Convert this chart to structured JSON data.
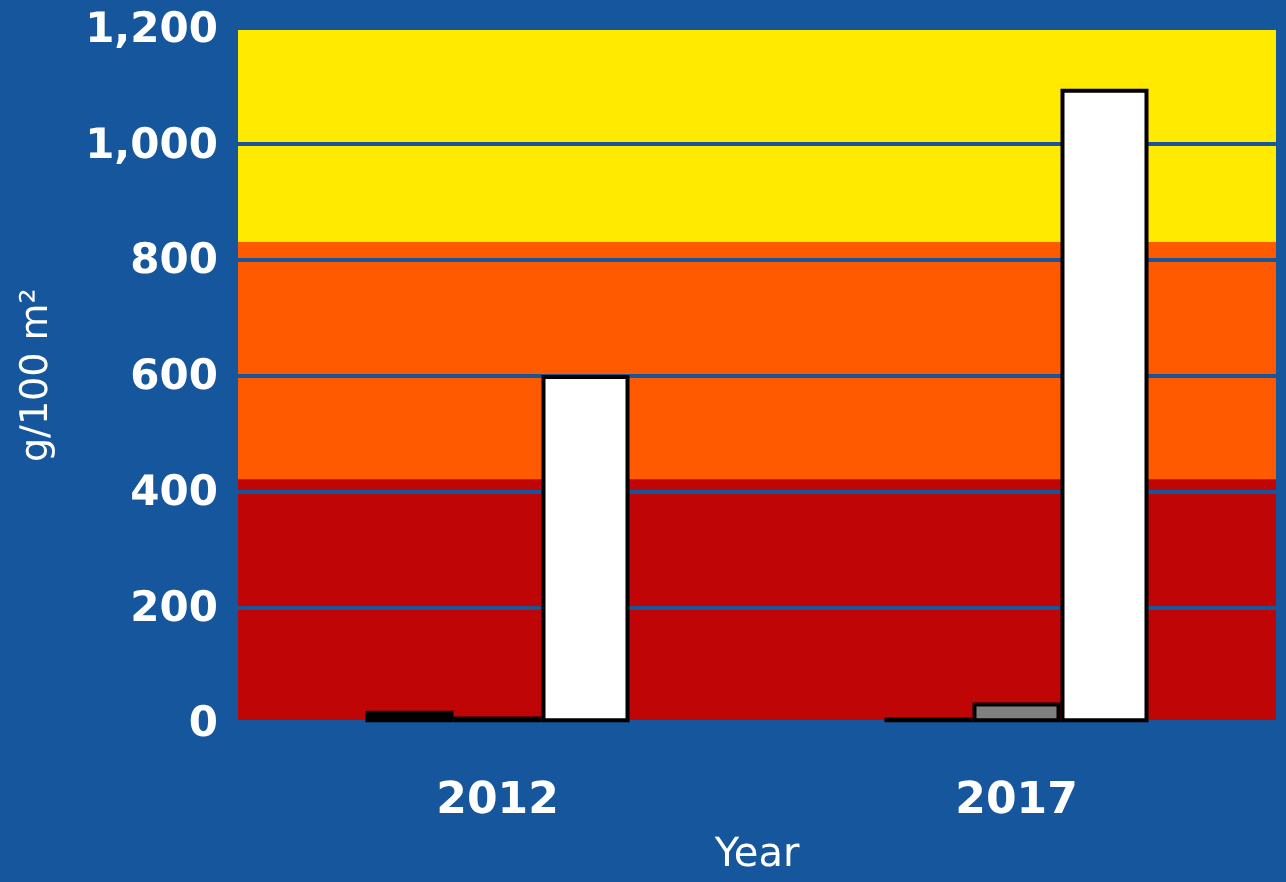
{
  "chart_data": {
    "type": "bar",
    "xlabel": "Year",
    "ylabel": "g/100 m²",
    "categories": [
      "2012",
      "2017"
    ],
    "series": [
      {
        "color": "#000000",
        "values": [
          20,
          8
        ]
      },
      {
        "color": "#808080",
        "values": [
          10,
          34
        ]
      },
      {
        "color": "#ffffff",
        "values": [
          600,
          1095
        ]
      }
    ],
    "bands": [
      {
        "axis": "y",
        "from": 0,
        "to": 420,
        "color": "#bf0505"
      },
      {
        "axis": "y",
        "from": 420,
        "to": 830,
        "color": "#ff5a00"
      },
      {
        "axis": "y",
        "from": 830,
        "to": 1200,
        "color": "#ffea00"
      }
    ],
    "ylim": [
      0,
      1200
    ],
    "yticks": [
      0,
      200,
      400,
      600,
      800,
      {
        "value": 1000,
        "label": "1,000"
      },
      {
        "value": 1200,
        "label": "1,200"
      }
    ],
    "grid": true
  }
}
